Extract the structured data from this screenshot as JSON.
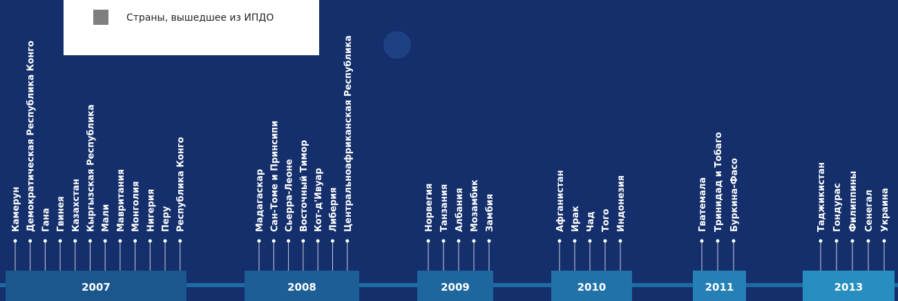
{
  "legend": {
    "label": "Страны, вышедшее из ИПДО"
  },
  "groups": [
    {
      "year": "2007",
      "countries": [
        "Камерун",
        "Демократическая Республика Конго",
        "Гана",
        "Гвинея",
        "Казахстан",
        "Кыргызская Республика",
        "Мали",
        "Мавритания",
        "Монголия",
        "Нигерия",
        "Перу",
        "Республика Конго"
      ]
    },
    {
      "year": "2008",
      "countries": [
        "Мадагаскар",
        "Сан-Томе и Принсипи",
        "Сьерра-Леоне",
        "Восточный Тимор",
        "Кот-д'Ивуар",
        "Либерия",
        "Центральноафриканская Республика"
      ]
    },
    {
      "year": "2009",
      "countries": [
        "Норвегия",
        "Танзания",
        "Албания",
        "Мозамбик",
        "Замбия"
      ]
    },
    {
      "year": "2010",
      "countries": [
        "Афганистан",
        "Ирак",
        "Чад",
        "Того",
        "Индонезия"
      ]
    },
    {
      "year": "2011",
      "countries": [
        "Гватемала",
        "Тринидад и Тобаго",
        "Буркина-Фасо"
      ]
    },
    {
      "year": "2013",
      "countries": [
        "Таджикистан",
        "Гондурас",
        "Филиппины",
        "Сенегал",
        "Украина"
      ]
    }
  ]
}
